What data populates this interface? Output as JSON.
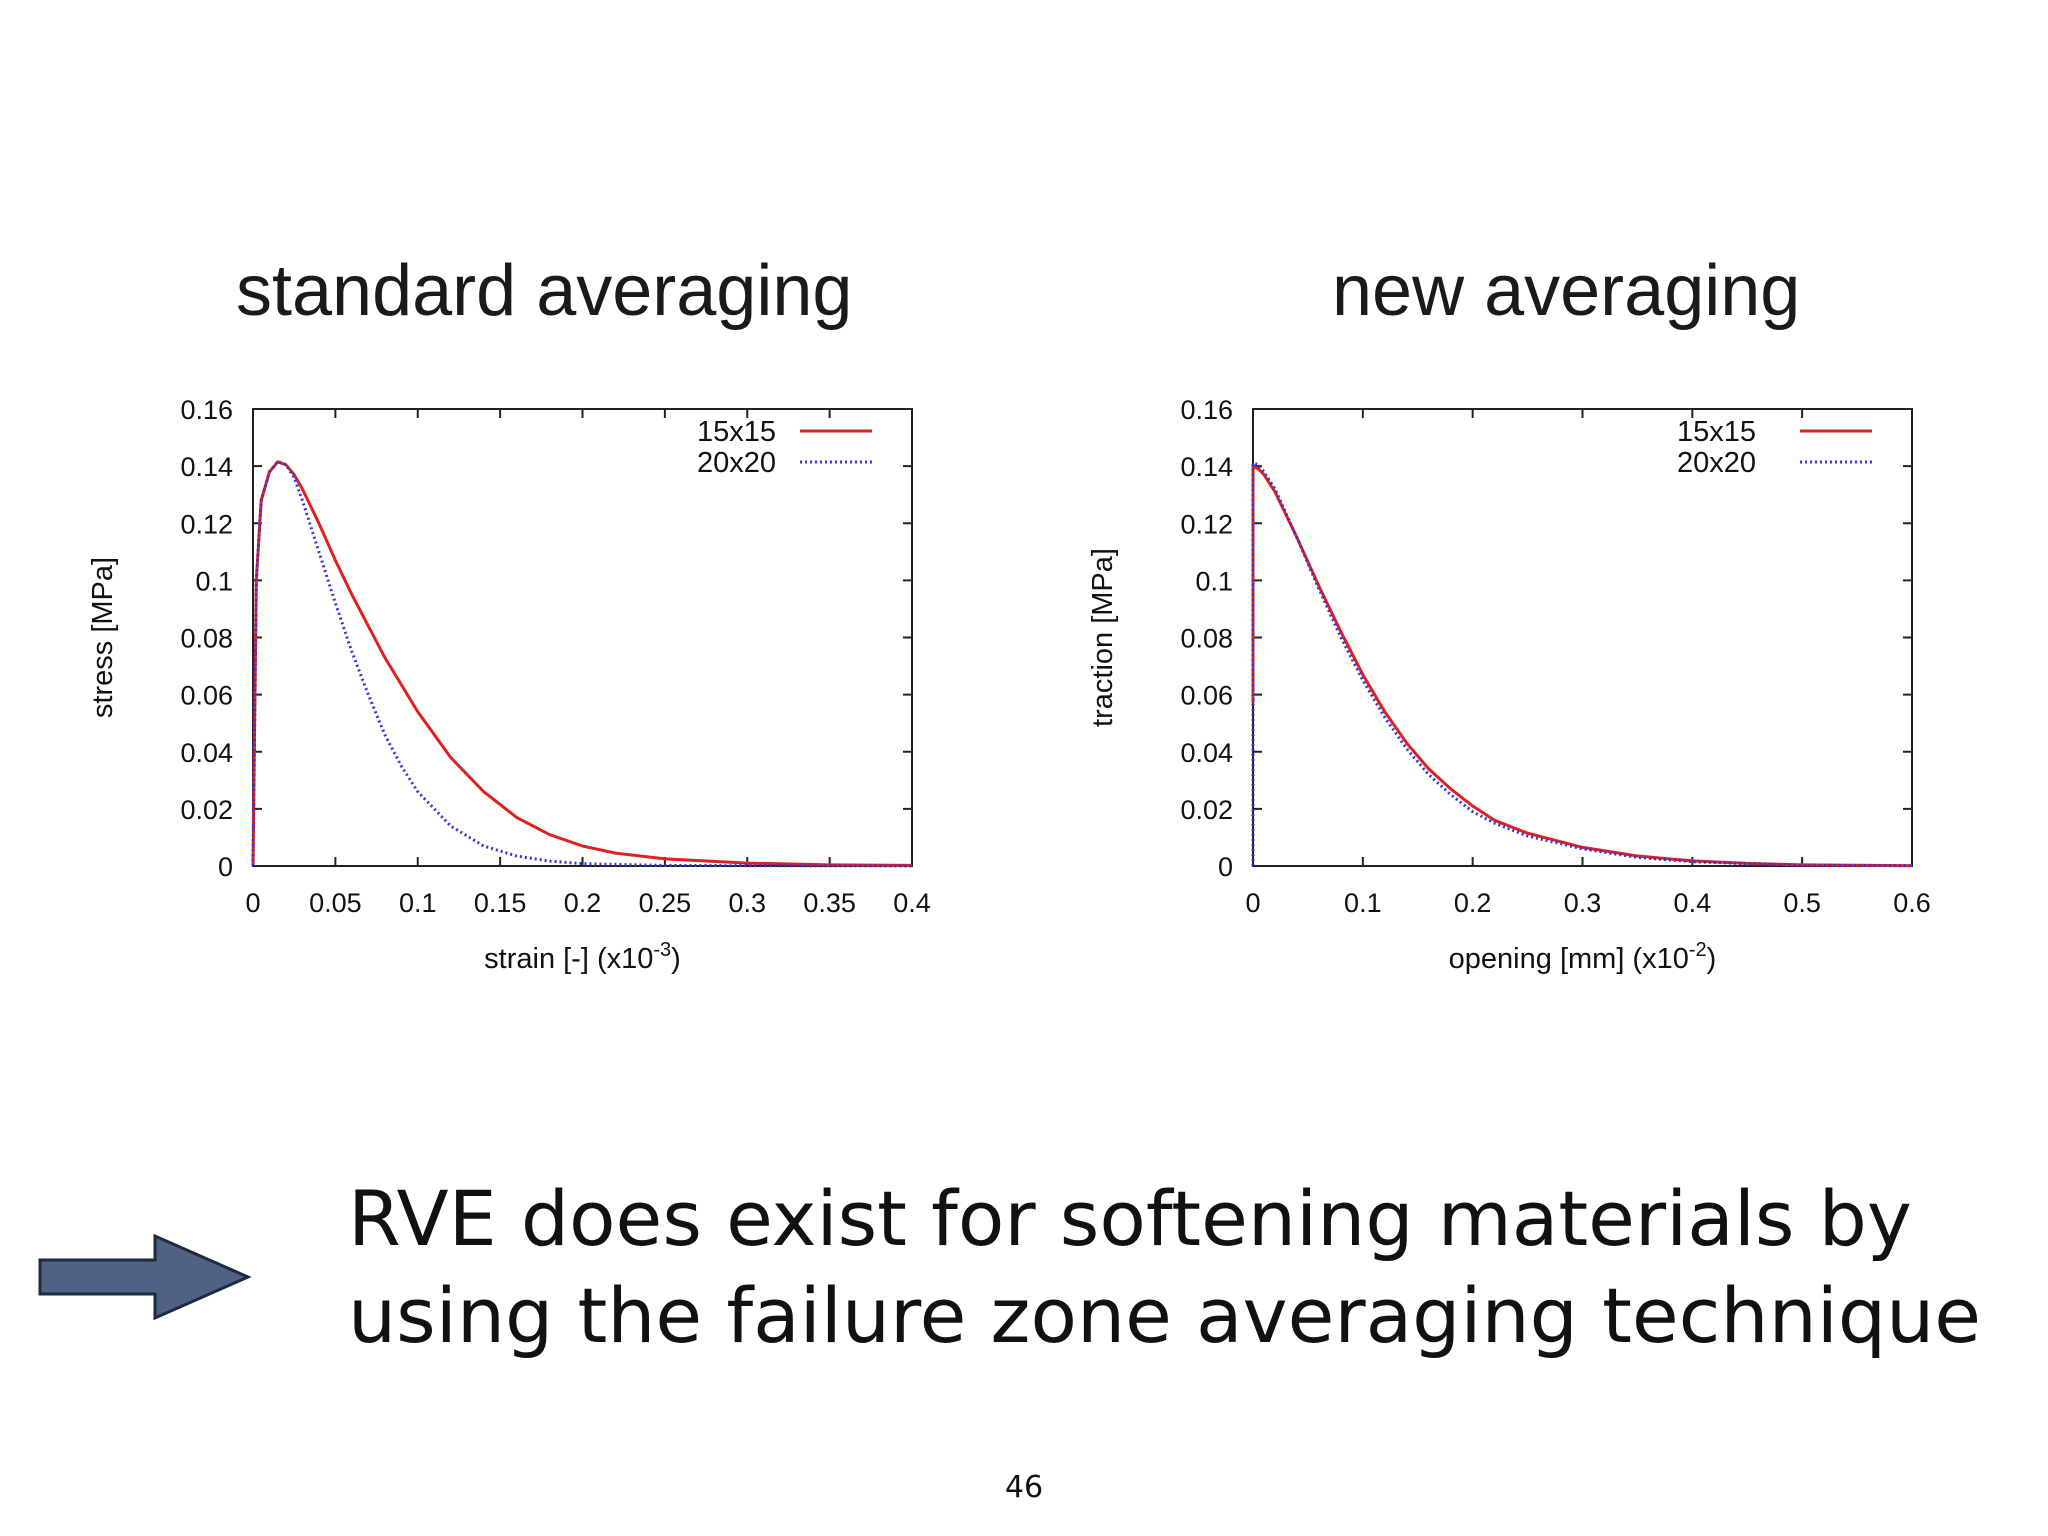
{
  "slide": {
    "page_number": "46",
    "conclusion_line1": "RVE does exist for softening materials by",
    "conclusion_line2": "using the failure zone averaging technique",
    "arrow_icon": "right-arrow-icon",
    "arrow_color": "#4f6284"
  },
  "chart_data": [
    {
      "type": "line",
      "title": "standard averaging",
      "xlabel": "strain [-] (x10",
      "xlabel_exponent": "-3",
      "xlabel_suffix": ")",
      "ylabel": "stress [MPa]",
      "xlim": [
        0,
        0.4
      ],
      "ylim": [
        0,
        0.16
      ],
      "xticks": [
        "0",
        "0.05",
        "0.1",
        "0.15",
        "0.2",
        "0.25",
        "0.3",
        "0.35",
        "0.4"
      ],
      "yticks": [
        "0",
        "0.02",
        "0.04",
        "0.06",
        "0.08",
        "0.1",
        "0.12",
        "0.14",
        "0.16"
      ],
      "legend_position": "top-right",
      "series": [
        {
          "name": "15x15",
          "color": "#e02020",
          "style": "solid",
          "x": [
            0,
            0.002,
            0.005,
            0.01,
            0.015,
            0.02,
            0.025,
            0.03,
            0.04,
            0.05,
            0.06,
            0.08,
            0.1,
            0.12,
            0.14,
            0.16,
            0.18,
            0.2,
            0.22,
            0.25,
            0.3,
            0.35,
            0.4
          ],
          "y": [
            0,
            0.1,
            0.128,
            0.138,
            0.1415,
            0.1405,
            0.137,
            0.132,
            0.12,
            0.107,
            0.095,
            0.073,
            0.054,
            0.038,
            0.026,
            0.017,
            0.011,
            0.007,
            0.0045,
            0.0025,
            0.001,
            0.0004,
            0.0002
          ]
        },
        {
          "name": "20x20",
          "color": "#3333dd",
          "style": "dotted",
          "x": [
            0,
            0.002,
            0.005,
            0.01,
            0.015,
            0.02,
            0.025,
            0.03,
            0.04,
            0.05,
            0.06,
            0.07,
            0.08,
            0.09,
            0.1,
            0.12,
            0.14,
            0.16,
            0.18,
            0.2,
            0.25,
            0.3,
            0.4
          ],
          "y": [
            0,
            0.1,
            0.128,
            0.138,
            0.1415,
            0.1405,
            0.136,
            0.128,
            0.11,
            0.092,
            0.075,
            0.06,
            0.046,
            0.035,
            0.026,
            0.014,
            0.007,
            0.0035,
            0.0017,
            0.0008,
            0.0002,
            0.0001,
            0
          ]
        }
      ]
    },
    {
      "type": "line",
      "title": "new averaging",
      "xlabel": "opening [mm] (x10",
      "xlabel_exponent": "-2",
      "xlabel_suffix": ")",
      "ylabel": "traction [MPa]",
      "xlim": [
        0,
        0.6
      ],
      "ylim": [
        0,
        0.16
      ],
      "xticks": [
        "0",
        "0.1",
        "0.2",
        "0.3",
        "0.4",
        "0.5",
        "0.6"
      ],
      "yticks": [
        "0",
        "0.02",
        "0.04",
        "0.06",
        "0.08",
        "0.1",
        "0.12",
        "0.14",
        "0.16"
      ],
      "legend_position": "top-right",
      "series": [
        {
          "name": "15x15",
          "color": "#e02020",
          "style": "solid",
          "x": [
            0,
            0,
            0.005,
            0.01,
            0.02,
            0.04,
            0.06,
            0.08,
            0.1,
            0.12,
            0.14,
            0.16,
            0.18,
            0.2,
            0.22,
            0.25,
            0.3,
            0.35,
            0.4,
            0.45,
            0.5,
            0.6
          ],
          "y": [
            0.057,
            0.14,
            0.139,
            0.137,
            0.131,
            0.115,
            0.098,
            0.082,
            0.067,
            0.054,
            0.043,
            0.034,
            0.027,
            0.021,
            0.016,
            0.0115,
            0.0065,
            0.0035,
            0.0018,
            0.0009,
            0.0004,
            0.0001
          ]
        },
        {
          "name": "20x20",
          "color": "#3333dd",
          "style": "dotted",
          "x": [
            0,
            0,
            0.005,
            0.01,
            0.02,
            0.04,
            0.06,
            0.08,
            0.1,
            0.12,
            0.14,
            0.16,
            0.18,
            0.2,
            0.22,
            0.25,
            0.3,
            0.35,
            0.4,
            0.45,
            0.5,
            0.6
          ],
          "y": [
            0.0,
            0.141,
            0.1405,
            0.138,
            0.132,
            0.115,
            0.097,
            0.08,
            0.065,
            0.052,
            0.041,
            0.032,
            0.025,
            0.019,
            0.015,
            0.0105,
            0.006,
            0.003,
            0.0015,
            0.0008,
            0.0003,
            0.0001
          ]
        }
      ]
    }
  ]
}
